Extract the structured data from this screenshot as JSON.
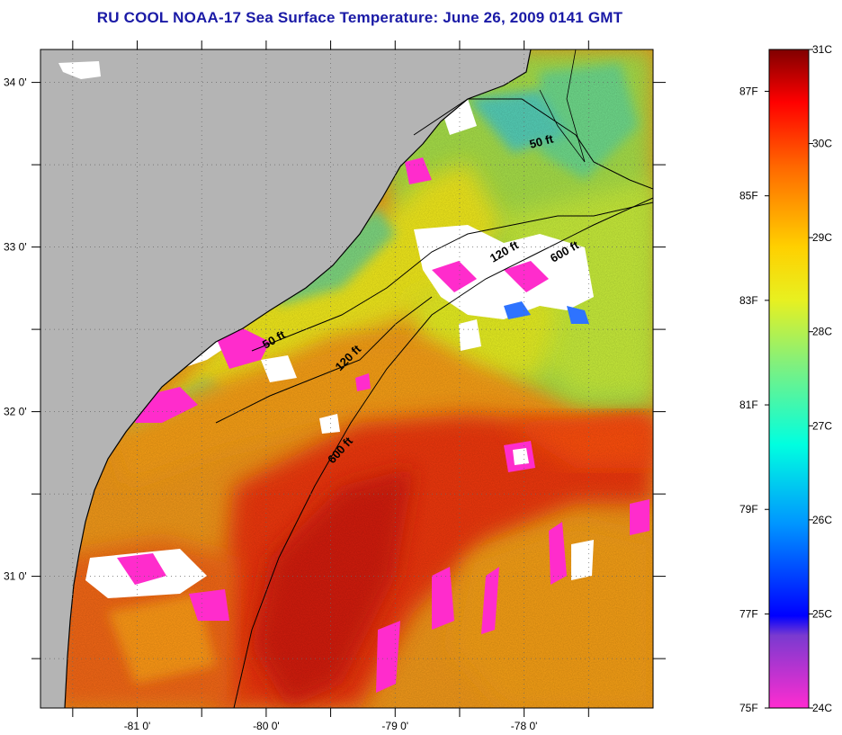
{
  "title": "RU COOL  NOAA-17  Sea Surface Temperature:  June 26, 2009 0141 GMT",
  "map": {
    "lon_range": [
      -81.75,
      -77.0
    ],
    "lat_range": [
      30.2,
      34.2
    ],
    "lon_ticks": [
      {
        "value": -81.5,
        "label": ""
      },
      {
        "value": -81.0,
        "label": "-81 0'"
      },
      {
        "value": -80.5,
        "label": ""
      },
      {
        "value": -80.0,
        "label": "-80 0'"
      },
      {
        "value": -79.5,
        "label": ""
      },
      {
        "value": -79.0,
        "label": "-79 0'"
      },
      {
        "value": -78.5,
        "label": ""
      },
      {
        "value": -78.0,
        "label": "-78 0'"
      },
      {
        "value": -77.5,
        "label": ""
      }
    ],
    "lat_ticks": [
      {
        "value": 34.0,
        "label": "34 0'"
      },
      {
        "value": 33.5,
        "label": ""
      },
      {
        "value": 33.0,
        "label": "33 0'"
      },
      {
        "value": 32.5,
        "label": ""
      },
      {
        "value": 32.0,
        "label": "32 0'"
      },
      {
        "value": 31.5,
        "label": ""
      },
      {
        "value": 31.0,
        "label": "31 0'"
      },
      {
        "value": 30.5,
        "label": ""
      }
    ],
    "contour_labels": [
      {
        "text": "50 ft"
      },
      {
        "text": "120 ft"
      },
      {
        "text": "600 ft"
      },
      {
        "text": "50 ft"
      },
      {
        "text": "120 ft"
      },
      {
        "text": "600 ft"
      }
    ],
    "colors": {
      "land": "#b4b4b4",
      "cloud_white": "#ffffff",
      "cloud_magenta": "#ff2ccc",
      "coastline": "#000000"
    }
  },
  "colorbar": {
    "celsius_labels": [
      "31C",
      "30C",
      "29C",
      "28C",
      "27C",
      "26C",
      "25C",
      "24C"
    ],
    "fahrenheit_labels": [
      "87F",
      "85F",
      "83F",
      "81F",
      "79F",
      "77F",
      "75F"
    ],
    "celsius_range": [
      24,
      31
    ]
  }
}
